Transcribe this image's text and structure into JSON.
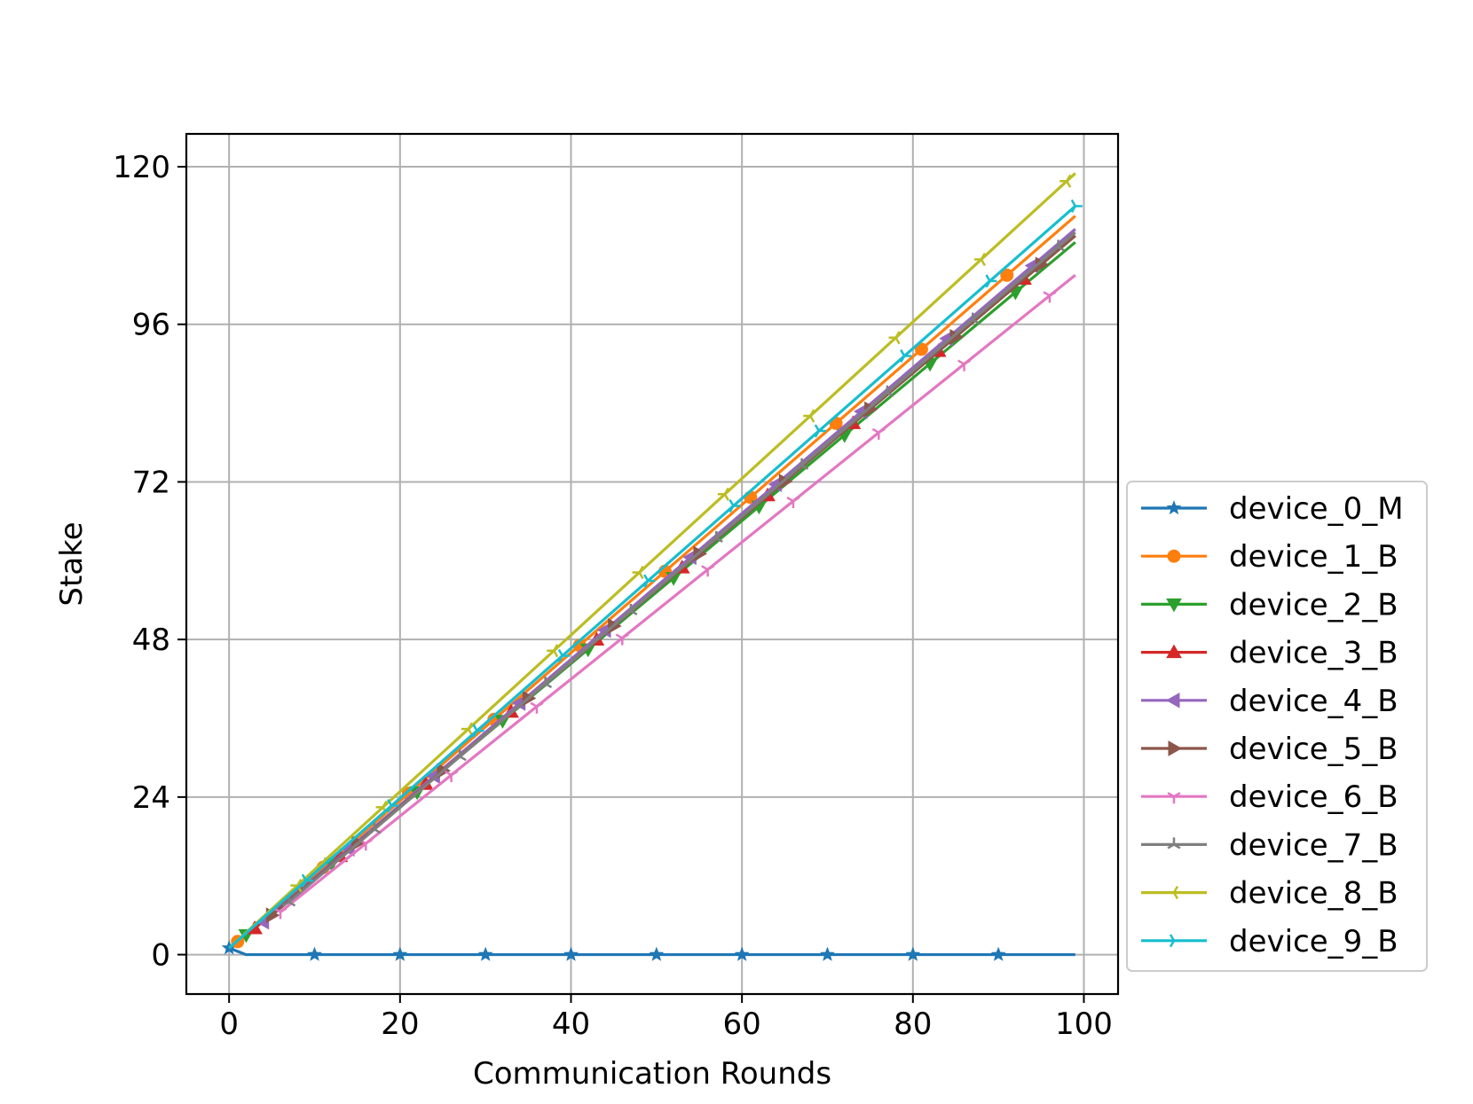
{
  "chart_data": {
    "type": "line",
    "title": "",
    "xlabel": "Communication Rounds",
    "ylabel": "Stake",
    "xlim": [
      -5,
      104
    ],
    "ylim": [
      -6,
      125
    ],
    "xticks": [
      0,
      20,
      40,
      60,
      80,
      100
    ],
    "yticks": [
      0,
      24,
      48,
      72,
      96,
      120
    ],
    "grid": true,
    "legend_position": "outside-right",
    "series": [
      {
        "name": "device_0_M",
        "color": "#1f77b4",
        "marker": "star",
        "x": [
          0,
          2,
          10,
          20,
          30,
          40,
          50,
          60,
          70,
          80,
          90,
          99
        ],
        "y": [
          1,
          0,
          0,
          0,
          0,
          0,
          0,
          0,
          0,
          0,
          0,
          0
        ],
        "markers_x": [
          0,
          10,
          20,
          30,
          40,
          50,
          60,
          70,
          80,
          90
        ]
      },
      {
        "name": "device_1_B",
        "color": "#ff7f0e",
        "marker": "circle",
        "x": [
          1,
          99
        ],
        "y": [
          2,
          112.5
        ],
        "markers_x": [
          1,
          11,
          21,
          31,
          41,
          51,
          61,
          71,
          81,
          91
        ]
      },
      {
        "name": "device_2_B",
        "color": "#2ca02c",
        "marker": "triangle-down",
        "x": [
          2,
          99
        ],
        "y": [
          3,
          108.5
        ],
        "markers_x": [
          2,
          12,
          22,
          32,
          42,
          52,
          62,
          72,
          82,
          92
        ]
      },
      {
        "name": "device_3_B",
        "color": "#d62728",
        "marker": "triangle-up",
        "x": [
          3,
          99
        ],
        "y": [
          4,
          109.5
        ],
        "markers_x": [
          3,
          13,
          23,
          33,
          43,
          53,
          63,
          73,
          83,
          93
        ]
      },
      {
        "name": "device_4_B",
        "color": "#9467bd",
        "marker": "triangle-left",
        "x": [
          4,
          99
        ],
        "y": [
          5,
          110.5
        ],
        "markers_x": [
          4,
          14,
          24,
          34,
          44,
          54,
          64,
          74,
          84,
          94
        ]
      },
      {
        "name": "device_5_B",
        "color": "#8c564b",
        "marker": "triangle-right",
        "x": [
          5,
          99
        ],
        "y": [
          6,
          109.5
        ],
        "markers_x": [
          5,
          15,
          25,
          35,
          45,
          55,
          65,
          75,
          85,
          95
        ]
      },
      {
        "name": "device_6_B",
        "color": "#e377c2",
        "marker": "tri-down",
        "x": [
          6,
          99
        ],
        "y": [
          6.5,
          103.5
        ],
        "markers_x": [
          6,
          16,
          26,
          36,
          46,
          56,
          66,
          76,
          86,
          96
        ]
      },
      {
        "name": "device_7_B",
        "color": "#7f7f7f",
        "marker": "tri-up",
        "x": [
          7,
          99
        ],
        "y": [
          8,
          110
        ],
        "markers_x": [
          7,
          17,
          27,
          37,
          47,
          57,
          67,
          77,
          87,
          97
        ]
      },
      {
        "name": "device_8_B",
        "color": "#bcbd22",
        "marker": "tri-left",
        "x": [
          0,
          99
        ],
        "y": [
          1,
          119
        ],
        "markers_x": [
          8,
          18,
          28,
          38,
          48,
          58,
          68,
          78,
          88,
          98
        ]
      },
      {
        "name": "device_9_B",
        "color": "#17becf",
        "marker": "tri-right",
        "x": [
          0,
          99
        ],
        "y": [
          1,
          114
        ],
        "markers_x": [
          9,
          19,
          29,
          39,
          49,
          59,
          69,
          79,
          89,
          99
        ]
      }
    ]
  }
}
